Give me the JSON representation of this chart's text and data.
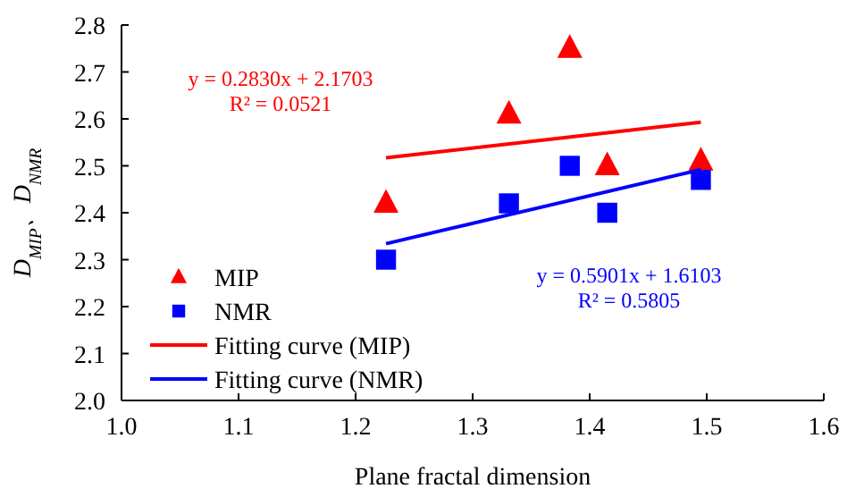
{
  "chart_data": {
    "type": "scatter",
    "xlabel": "Plane fractal dimension",
    "ylabel": "D$_{MIP}$、D$_{NMR}$",
    "xlim": [
      1.0,
      1.6
    ],
    "xticks": [
      {
        "value": 1.0,
        "label": "1.0"
      },
      1.1,
      1.2,
      1.3,
      1.4,
      1.5,
      1.6
    ],
    "ylim": [
      2.0,
      2.8
    ],
    "yticks": [
      {
        "value": 2.0,
        "label": "2.0"
      },
      2.1,
      2.2,
      2.3,
      2.4,
      2.5,
      2.6,
      2.7,
      2.8
    ],
    "legend": "bottom left",
    "grid": false,
    "series": [
      {
        "name": "MIP",
        "color": "#ff0000",
        "marker": "triangle",
        "x": [
          1.226,
          1.331,
          1.383,
          1.415,
          1.495
        ],
        "values": [
          2.42,
          2.61,
          2.75,
          2.5,
          2.51
        ]
      },
      {
        "name": "NMR",
        "color": "#0000ff",
        "marker": "square",
        "x": [
          1.226,
          1.331,
          1.383,
          1.415,
          1.495
        ],
        "values": [
          2.3,
          2.42,
          2.5,
          2.4,
          2.47
        ]
      },
      {
        "name": "Fitting curve (MIP)",
        "type": "line",
        "color": "#ff0000",
        "marker": "none",
        "x": [
          1.226,
          1.495
        ],
        "values": [
          2.517,
          2.593
        ]
      },
      {
        "name": "Fitting curve (NMR)",
        "type": "line",
        "color": "#0000ff",
        "marker": "none",
        "x": [
          1.226,
          1.495
        ],
        "values": [
          2.334,
          2.492
        ]
      }
    ],
    "annotations": [
      "y = 0.2830x + 2.1703",
      "R² = 0.0521",
      "y = 0.5901x + 1.6103",
      "R² = 0.5805"
    ]
  }
}
